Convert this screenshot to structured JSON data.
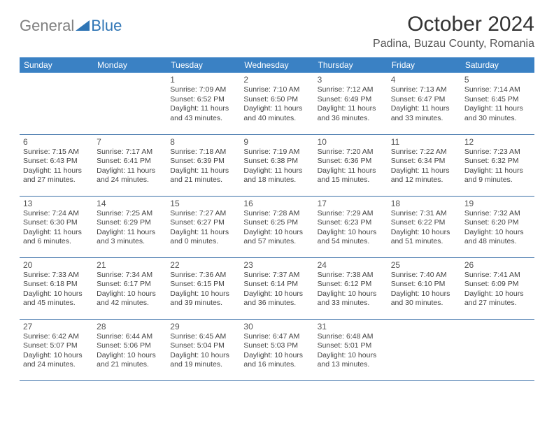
{
  "logo": {
    "text_gray": "General",
    "text_blue": "Blue"
  },
  "title": "October 2024",
  "location": "Padina, Buzau County, Romania",
  "colors": {
    "header_bg": "#3a81c4",
    "header_text": "#ffffff",
    "border": "#3a6fa8",
    "logo_gray": "#808080",
    "logo_blue": "#2f75b5"
  },
  "day_headers": [
    "Sunday",
    "Monday",
    "Tuesday",
    "Wednesday",
    "Thursday",
    "Friday",
    "Saturday"
  ],
  "weeks": [
    [
      null,
      null,
      {
        "n": "1",
        "sr": "Sunrise: 7:09 AM",
        "ss": "Sunset: 6:52 PM",
        "dl": "Daylight: 11 hours and 43 minutes."
      },
      {
        "n": "2",
        "sr": "Sunrise: 7:10 AM",
        "ss": "Sunset: 6:50 PM",
        "dl": "Daylight: 11 hours and 40 minutes."
      },
      {
        "n": "3",
        "sr": "Sunrise: 7:12 AM",
        "ss": "Sunset: 6:49 PM",
        "dl": "Daylight: 11 hours and 36 minutes."
      },
      {
        "n": "4",
        "sr": "Sunrise: 7:13 AM",
        "ss": "Sunset: 6:47 PM",
        "dl": "Daylight: 11 hours and 33 minutes."
      },
      {
        "n": "5",
        "sr": "Sunrise: 7:14 AM",
        "ss": "Sunset: 6:45 PM",
        "dl": "Daylight: 11 hours and 30 minutes."
      }
    ],
    [
      {
        "n": "6",
        "sr": "Sunrise: 7:15 AM",
        "ss": "Sunset: 6:43 PM",
        "dl": "Daylight: 11 hours and 27 minutes."
      },
      {
        "n": "7",
        "sr": "Sunrise: 7:17 AM",
        "ss": "Sunset: 6:41 PM",
        "dl": "Daylight: 11 hours and 24 minutes."
      },
      {
        "n": "8",
        "sr": "Sunrise: 7:18 AM",
        "ss": "Sunset: 6:39 PM",
        "dl": "Daylight: 11 hours and 21 minutes."
      },
      {
        "n": "9",
        "sr": "Sunrise: 7:19 AM",
        "ss": "Sunset: 6:38 PM",
        "dl": "Daylight: 11 hours and 18 minutes."
      },
      {
        "n": "10",
        "sr": "Sunrise: 7:20 AM",
        "ss": "Sunset: 6:36 PM",
        "dl": "Daylight: 11 hours and 15 minutes."
      },
      {
        "n": "11",
        "sr": "Sunrise: 7:22 AM",
        "ss": "Sunset: 6:34 PM",
        "dl": "Daylight: 11 hours and 12 minutes."
      },
      {
        "n": "12",
        "sr": "Sunrise: 7:23 AM",
        "ss": "Sunset: 6:32 PM",
        "dl": "Daylight: 11 hours and 9 minutes."
      }
    ],
    [
      {
        "n": "13",
        "sr": "Sunrise: 7:24 AM",
        "ss": "Sunset: 6:30 PM",
        "dl": "Daylight: 11 hours and 6 minutes."
      },
      {
        "n": "14",
        "sr": "Sunrise: 7:25 AM",
        "ss": "Sunset: 6:29 PM",
        "dl": "Daylight: 11 hours and 3 minutes."
      },
      {
        "n": "15",
        "sr": "Sunrise: 7:27 AM",
        "ss": "Sunset: 6:27 PM",
        "dl": "Daylight: 11 hours and 0 minutes."
      },
      {
        "n": "16",
        "sr": "Sunrise: 7:28 AM",
        "ss": "Sunset: 6:25 PM",
        "dl": "Daylight: 10 hours and 57 minutes."
      },
      {
        "n": "17",
        "sr": "Sunrise: 7:29 AM",
        "ss": "Sunset: 6:23 PM",
        "dl": "Daylight: 10 hours and 54 minutes."
      },
      {
        "n": "18",
        "sr": "Sunrise: 7:31 AM",
        "ss": "Sunset: 6:22 PM",
        "dl": "Daylight: 10 hours and 51 minutes."
      },
      {
        "n": "19",
        "sr": "Sunrise: 7:32 AM",
        "ss": "Sunset: 6:20 PM",
        "dl": "Daylight: 10 hours and 48 minutes."
      }
    ],
    [
      {
        "n": "20",
        "sr": "Sunrise: 7:33 AM",
        "ss": "Sunset: 6:18 PM",
        "dl": "Daylight: 10 hours and 45 minutes."
      },
      {
        "n": "21",
        "sr": "Sunrise: 7:34 AM",
        "ss": "Sunset: 6:17 PM",
        "dl": "Daylight: 10 hours and 42 minutes."
      },
      {
        "n": "22",
        "sr": "Sunrise: 7:36 AM",
        "ss": "Sunset: 6:15 PM",
        "dl": "Daylight: 10 hours and 39 minutes."
      },
      {
        "n": "23",
        "sr": "Sunrise: 7:37 AM",
        "ss": "Sunset: 6:14 PM",
        "dl": "Daylight: 10 hours and 36 minutes."
      },
      {
        "n": "24",
        "sr": "Sunrise: 7:38 AM",
        "ss": "Sunset: 6:12 PM",
        "dl": "Daylight: 10 hours and 33 minutes."
      },
      {
        "n": "25",
        "sr": "Sunrise: 7:40 AM",
        "ss": "Sunset: 6:10 PM",
        "dl": "Daylight: 10 hours and 30 minutes."
      },
      {
        "n": "26",
        "sr": "Sunrise: 7:41 AM",
        "ss": "Sunset: 6:09 PM",
        "dl": "Daylight: 10 hours and 27 minutes."
      }
    ],
    [
      {
        "n": "27",
        "sr": "Sunrise: 6:42 AM",
        "ss": "Sunset: 5:07 PM",
        "dl": "Daylight: 10 hours and 24 minutes."
      },
      {
        "n": "28",
        "sr": "Sunrise: 6:44 AM",
        "ss": "Sunset: 5:06 PM",
        "dl": "Daylight: 10 hours and 21 minutes."
      },
      {
        "n": "29",
        "sr": "Sunrise: 6:45 AM",
        "ss": "Sunset: 5:04 PM",
        "dl": "Daylight: 10 hours and 19 minutes."
      },
      {
        "n": "30",
        "sr": "Sunrise: 6:47 AM",
        "ss": "Sunset: 5:03 PM",
        "dl": "Daylight: 10 hours and 16 minutes."
      },
      {
        "n": "31",
        "sr": "Sunrise: 6:48 AM",
        "ss": "Sunset: 5:01 PM",
        "dl": "Daylight: 10 hours and 13 minutes."
      },
      null,
      null
    ]
  ]
}
